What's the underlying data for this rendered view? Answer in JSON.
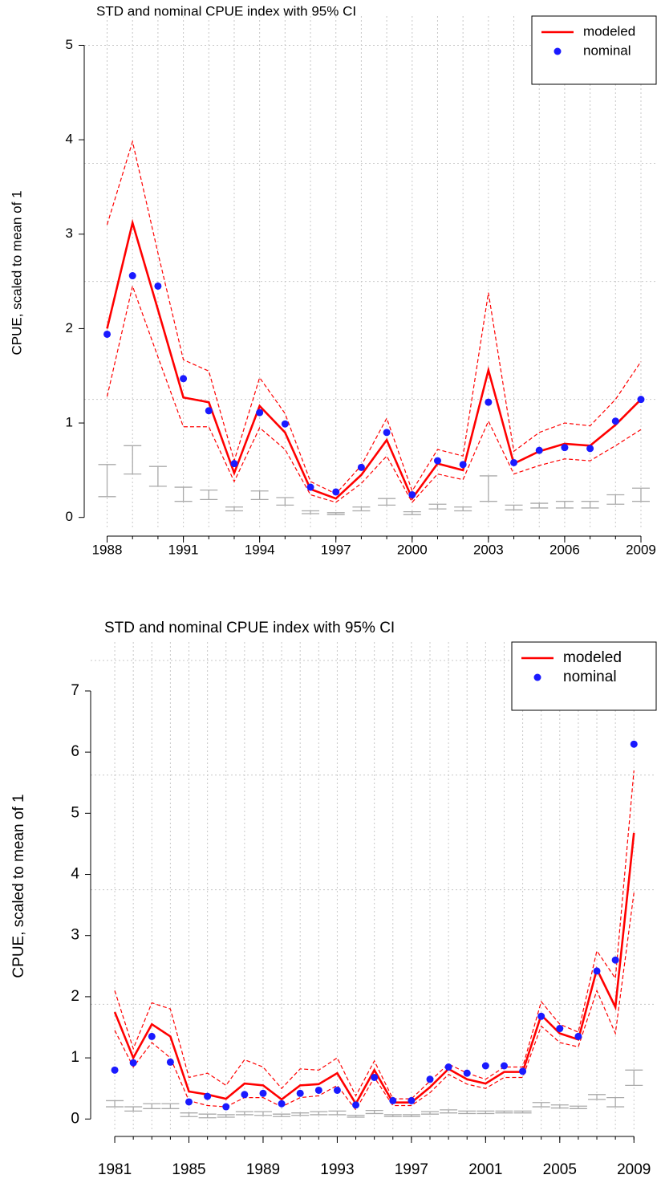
{
  "chart_data": [
    {
      "type": "line",
      "title": "STD and nominal CPUE index with 95% CI",
      "ylabel": "CPUE, scaled to mean of 1",
      "x": [
        1988,
        1989,
        1990,
        1991,
        1992,
        1993,
        1994,
        1995,
        1996,
        1997,
        1998,
        1999,
        2000,
        2001,
        2002,
        2003,
        2004,
        2005,
        2006,
        2007,
        2008,
        2009
      ],
      "xlim": [
        1987.1,
        2009.6
      ],
      "xticks": [
        1988,
        1991,
        1994,
        1997,
        2000,
        2003,
        2006,
        2009
      ],
      "ylim": [
        -0.13,
        5.31
      ],
      "yticks": [
        0,
        1,
        2,
        3,
        4,
        5
      ],
      "ygrid": [
        1.25,
        2.5,
        3.75,
        5
      ],
      "grid": true,
      "legend": "top-right",
      "series": [
        {
          "name": "modeled",
          "type": "line",
          "color": "#ff0000",
          "values": [
            2.0,
            3.12,
            2.2,
            1.27,
            1.22,
            0.47,
            1.18,
            0.9,
            0.3,
            0.2,
            0.45,
            0.82,
            0.2,
            0.57,
            0.5,
            1.56,
            0.57,
            0.7,
            0.78,
            0.76,
            0.98,
            1.25
          ],
          "upper": [
            3.1,
            3.98,
            2.8,
            1.67,
            1.55,
            0.6,
            1.48,
            1.1,
            0.38,
            0.25,
            0.55,
            1.05,
            0.28,
            0.72,
            0.65,
            2.38,
            0.7,
            0.9,
            1.0,
            0.97,
            1.25,
            1.65
          ],
          "lower": [
            1.28,
            2.45,
            1.7,
            0.96,
            0.96,
            0.38,
            0.95,
            0.72,
            0.24,
            0.16,
            0.36,
            0.65,
            0.16,
            0.46,
            0.4,
            1.02,
            0.46,
            0.55,
            0.62,
            0.6,
            0.76,
            0.93
          ]
        },
        {
          "name": "nominal",
          "type": "scatter",
          "color": "#1a1aff",
          "values": [
            1.94,
            2.56,
            2.45,
            1.47,
            1.13,
            0.57,
            1.11,
            0.99,
            0.32,
            0.27,
            0.53,
            0.9,
            0.24,
            0.6,
            0.56,
            1.22,
            0.58,
            0.71,
            0.74,
            0.73,
            1.02,
            1.25
          ]
        }
      ],
      "bars": {
        "color": "#aaaaaa",
        "low": [
          0.22,
          0.46,
          0.33,
          0.17,
          0.19,
          0.07,
          0.19,
          0.13,
          0.04,
          0.03,
          0.07,
          0.13,
          0.03,
          0.09,
          0.07,
          0.17,
          0.08,
          0.1,
          0.1,
          0.1,
          0.14,
          0.17
        ],
        "high": [
          0.56,
          0.76,
          0.54,
          0.32,
          0.29,
          0.11,
          0.28,
          0.21,
          0.07,
          0.05,
          0.11,
          0.2,
          0.06,
          0.14,
          0.11,
          0.44,
          0.13,
          0.15,
          0.17,
          0.17,
          0.24,
          0.31
        ]
      }
    },
    {
      "type": "line",
      "title": "STD and nominal CPUE index with 95% CI",
      "ylabel": "CPUE, scaled to mean of 1",
      "x": [
        1981,
        1982,
        1983,
        1984,
        1985,
        1986,
        1987,
        1988,
        1989,
        1990,
        1991,
        1992,
        1993,
        1994,
        1995,
        1996,
        1997,
        1998,
        1999,
        2000,
        2001,
        2002,
        2003,
        2004,
        2005,
        2006,
        2007,
        2008,
        2009
      ],
      "xlim": [
        1979.7,
        2010.2
      ],
      "xticks": [
        1981,
        1985,
        1989,
        1993,
        1997,
        2001,
        2005,
        2009
      ],
      "ylim": [
        -0.18,
        7.8
      ],
      "yticks": [
        0,
        1,
        2,
        3,
        4,
        5,
        6,
        7
      ],
      "ygrid": [
        1.875,
        3.75,
        5.625,
        7.5
      ],
      "grid": true,
      "legend": "top-right",
      "series": [
        {
          "name": "modeled",
          "type": "line",
          "color": "#ff0000",
          "values": [
            1.75,
            1.0,
            1.55,
            1.35,
            0.45,
            0.4,
            0.33,
            0.58,
            0.55,
            0.32,
            0.55,
            0.57,
            0.75,
            0.25,
            0.8,
            0.27,
            0.27,
            0.52,
            0.82,
            0.65,
            0.58,
            0.77,
            0.77,
            1.7,
            1.4,
            1.3,
            2.45,
            1.83,
            4.68
          ],
          "upper": [
            2.1,
            1.15,
            1.9,
            1.8,
            0.68,
            0.75,
            0.55,
            0.97,
            0.85,
            0.5,
            0.82,
            0.8,
            1.0,
            0.38,
            0.95,
            0.33,
            0.33,
            0.62,
            0.9,
            0.75,
            0.65,
            0.85,
            0.85,
            1.92,
            1.55,
            1.42,
            2.75,
            2.3,
            5.7
          ],
          "lower": [
            1.45,
            0.85,
            1.25,
            1.0,
            0.3,
            0.22,
            0.2,
            0.35,
            0.35,
            0.2,
            0.35,
            0.38,
            0.55,
            0.15,
            0.68,
            0.22,
            0.22,
            0.43,
            0.73,
            0.57,
            0.5,
            0.68,
            0.68,
            1.52,
            1.25,
            1.18,
            2.1,
            1.4,
            3.7
          ]
        },
        {
          "name": "nominal",
          "type": "scatter",
          "color": "#1a1aff",
          "values": [
            0.8,
            0.92,
            1.35,
            0.93,
            0.28,
            0.37,
            0.2,
            0.4,
            0.42,
            0.25,
            0.42,
            0.47,
            0.47,
            0.23,
            0.68,
            0.3,
            0.3,
            0.65,
            0.85,
            0.75,
            0.87,
            0.87,
            0.78,
            1.68,
            1.48,
            1.35,
            2.42,
            2.6,
            6.13
          ]
        }
      ],
      "bars": {
        "color": "#aaaaaa",
        "low": [
          0.2,
          0.13,
          0.17,
          0.17,
          0.04,
          0.02,
          0.03,
          0.07,
          0.06,
          0.04,
          0.06,
          0.07,
          0.07,
          0.03,
          0.09,
          0.04,
          0.04,
          0.08,
          0.1,
          0.09,
          0.09,
          0.1,
          0.1,
          0.2,
          0.18,
          0.17,
          0.32,
          0.2,
          0.55
        ],
        "high": [
          0.3,
          0.2,
          0.25,
          0.25,
          0.1,
          0.08,
          0.07,
          0.12,
          0.12,
          0.08,
          0.1,
          0.12,
          0.13,
          0.06,
          0.14,
          0.07,
          0.07,
          0.12,
          0.15,
          0.13,
          0.13,
          0.13,
          0.13,
          0.27,
          0.23,
          0.21,
          0.4,
          0.35,
          0.8
        ]
      }
    }
  ]
}
